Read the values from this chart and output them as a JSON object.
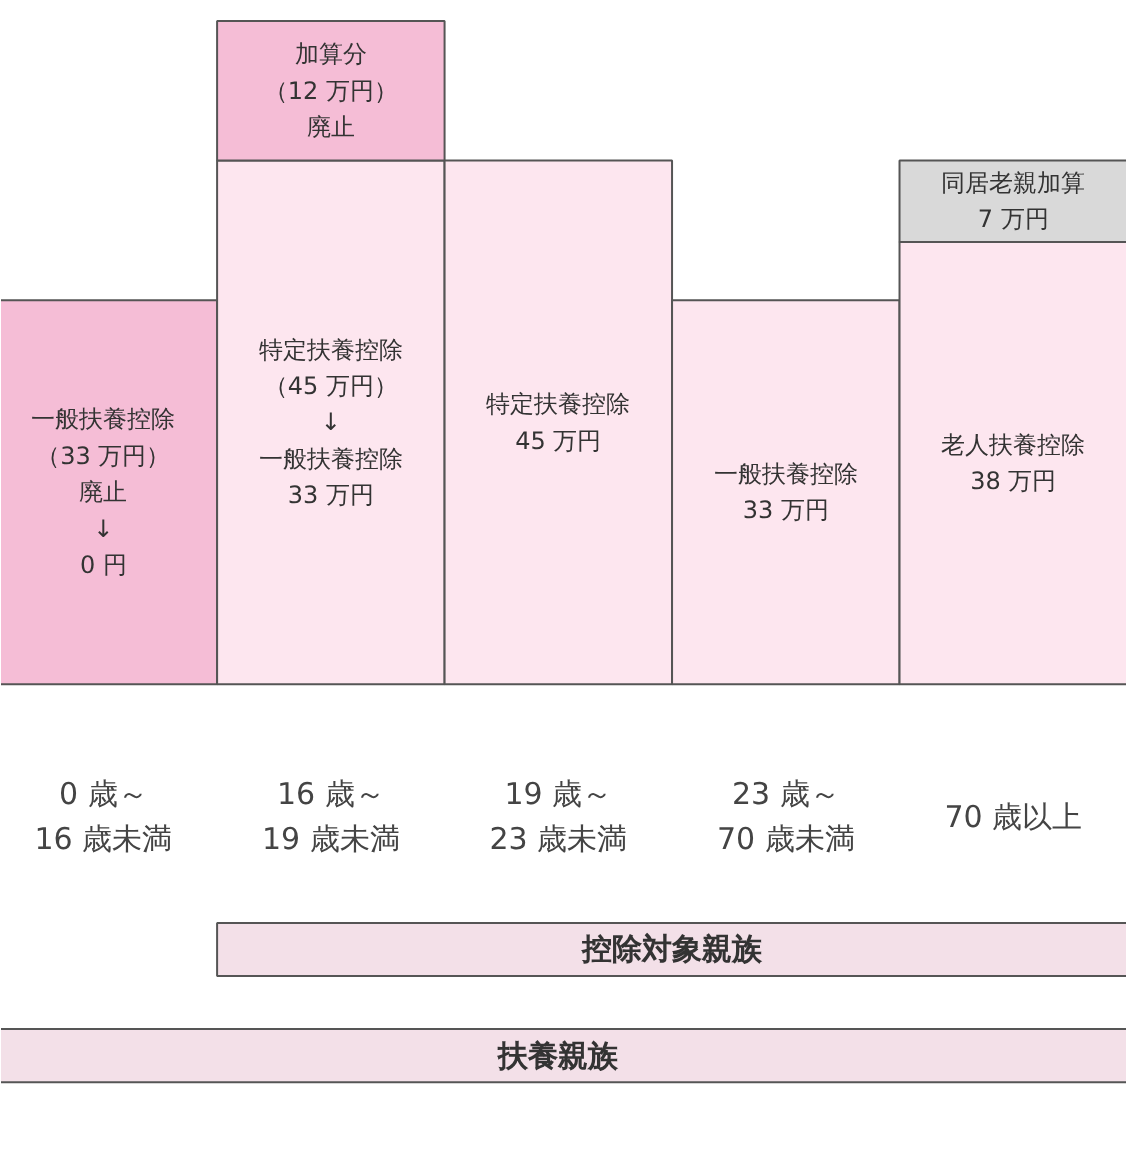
{
  "chart_data": {
    "type": "bar",
    "stacked": true,
    "categories": [
      "0 歳～\n16 歳未満",
      "16 歳～\n19 歳未満",
      "19 歳～\n23 歳未満",
      "23 歳～\n70 歳未満",
      "70 歳以上"
    ],
    "series": [
      {
        "colors": [
          "#f5bdd6",
          "#fde6ef",
          "#fde6ef",
          "#fde6ef",
          "#fde6ef"
        ],
        "values": [
          33,
          45,
          45,
          33,
          38
        ],
        "value_labels": [
          "一般扶養控除（33 万円）廃止\n↓\n0 円",
          "特定扶養控除（45 万円）\n↓\n一般扶養控除\n33 万円",
          "特定扶養控除\n45 万円",
          "一般扶養控除\n33 万円",
          "老人扶養控除\n38 万円"
        ]
      },
      {
        "colors": [
          "#f5bdd6",
          "#f5bdd6",
          "#fde6ef",
          "#fde6ef",
          "#d9d9d9"
        ],
        "values": [
          null,
          12,
          null,
          null,
          7
        ],
        "value_labels": [
          null,
          "加算分（12 万円）廃止",
          null,
          null,
          "同居老親加算\n7 万円"
        ]
      }
    ],
    "annotations": [
      "控除対象親族",
      "扶養親族"
    ],
    "grid": false
  }
}
